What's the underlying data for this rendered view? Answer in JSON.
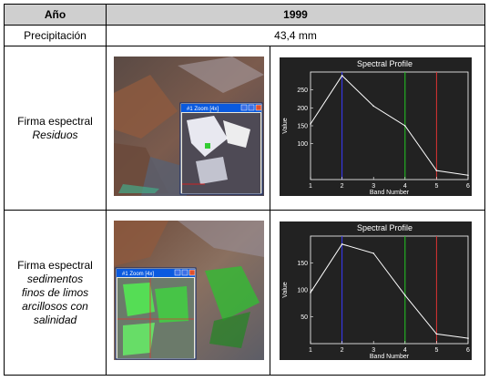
{
  "table": {
    "header": {
      "label": "Año",
      "value": "1999"
    },
    "precip": {
      "label": "Precipitación",
      "value": "43,4 mm"
    },
    "rows": [
      {
        "label_line1": "Firma espectral",
        "label_line2": "Residuos"
      },
      {
        "label_line1": "Firma espectral",
        "label_line2": "sedimentos finos de limos arcillosos con salinidad"
      }
    ]
  },
  "zoom_windows": [
    {
      "title": "#1 Zoom [4x]"
    },
    {
      "title": "#1 Zoom [4x]"
    }
  ],
  "chart_data": [
    {
      "type": "line",
      "title": "Spectral Profile",
      "xlabel": "Band Number",
      "ylabel": "Value",
      "x": [
        1,
        2,
        3,
        4,
        5,
        6
      ],
      "values": [
        155,
        290,
        205,
        150,
        25,
        12
      ],
      "xlim": [
        1,
        6
      ],
      "ylim": [
        0,
        300
      ],
      "xticks": [
        "1",
        "2",
        "3",
        "4",
        "5",
        "6"
      ],
      "yticks": [
        "100",
        "150",
        "200",
        "250"
      ],
      "band_markers": [
        {
          "band": 2,
          "color": "#3a3aff"
        },
        {
          "band": 4,
          "color": "#22cc22"
        },
        {
          "band": 5,
          "color": "#dd3333"
        }
      ],
      "background": "#222222",
      "line_color": "#ffffff"
    },
    {
      "type": "line",
      "title": "Spectral Profile",
      "xlabel": "Band Number",
      "ylabel": "Value",
      "x": [
        1,
        2,
        3,
        4,
        5,
        6
      ],
      "values": [
        95,
        185,
        168,
        90,
        18,
        10
      ],
      "xlim": [
        1,
        6
      ],
      "ylim": [
        0,
        200
      ],
      "xticks": [
        "1",
        "2",
        "3",
        "4",
        "5",
        "6"
      ],
      "yticks": [
        "50",
        "100",
        "150"
      ],
      "band_markers": [
        {
          "band": 2,
          "color": "#3a3aff"
        },
        {
          "band": 4,
          "color": "#22cc22"
        },
        {
          "band": 5,
          "color": "#dd3333"
        }
      ],
      "background": "#222222",
      "line_color": "#ffffff"
    }
  ]
}
